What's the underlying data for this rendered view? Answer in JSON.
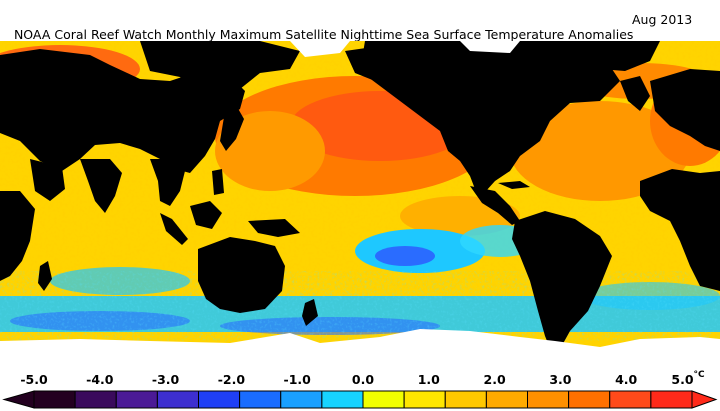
{
  "title": "NOAA Coral Reef Watch Monthly Maximum Satellite Nighttime Sea Surface Temperature Anomalies",
  "date": "Aug 2013",
  "colorbar": {
    "labels": [
      "-5.0",
      "-4.0",
      "-3.0",
      "-2.0",
      "-1.0",
      "0.0",
      "1.0",
      "2.0",
      "3.0",
      "4.0",
      "5.0"
    ],
    "unit": "°C",
    "colors": [
      "#230020",
      "#3a0a5c",
      "#4b1a96",
      "#3d2fd0",
      "#1f3ff5",
      "#1a6cff",
      "#1aa0ff",
      "#17d3ff",
      "#f2ff00",
      "#ffe600",
      "#ffc800",
      "#ffaa00",
      "#ff9000",
      "#ff7000",
      "#ff4a1a",
      "#ff2a1a"
    ]
  },
  "legend_colors": {
    "land": "#000000",
    "no_data_ice": "#ffffff",
    "warm_anomaly": "#ff8a00",
    "neutral_anomaly": "#ffe600",
    "cool_anomaly": "#17c8ff"
  }
}
